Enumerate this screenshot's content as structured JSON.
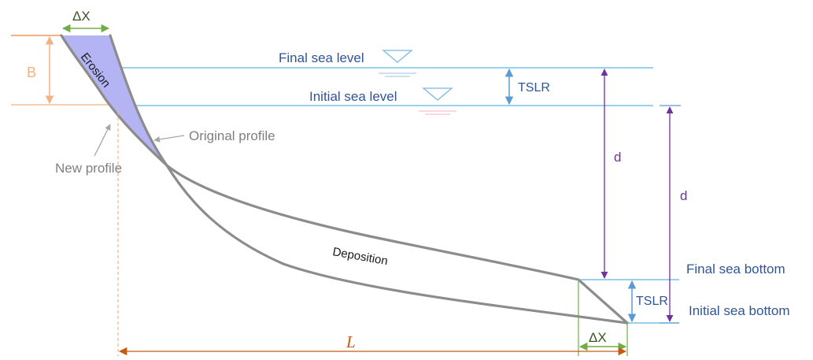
{
  "labels": {
    "delta_x_top": "ΔX",
    "delta_x_bottom": "ΔX",
    "b": "B",
    "erosion": "Erosion",
    "final_sea_level": "Final sea level",
    "initial_sea_level": "Initial sea level",
    "tslr_top": "TSLR",
    "tslr_bottom": "TSLR",
    "original_profile": "Original profile",
    "new_profile": "New profile",
    "d_inner": "d",
    "d_outer": "d",
    "deposition": "Deposition",
    "final_sea_bottom": "Final sea bottom",
    "initial_sea_bottom": "Initial sea bottom",
    "l": "L"
  },
  "colors": {
    "sea_level_line": "#5bb4e5",
    "profile_line": "#8c8c8c",
    "erosion_fill": "#b4b4f5",
    "dimension_green": "#70ad47",
    "dimension_orange": "#f4b183",
    "dimension_purple": "#7030a0",
    "tslr_arrow": "#5b9bd5",
    "L_arrow": "#c55a11"
  }
}
